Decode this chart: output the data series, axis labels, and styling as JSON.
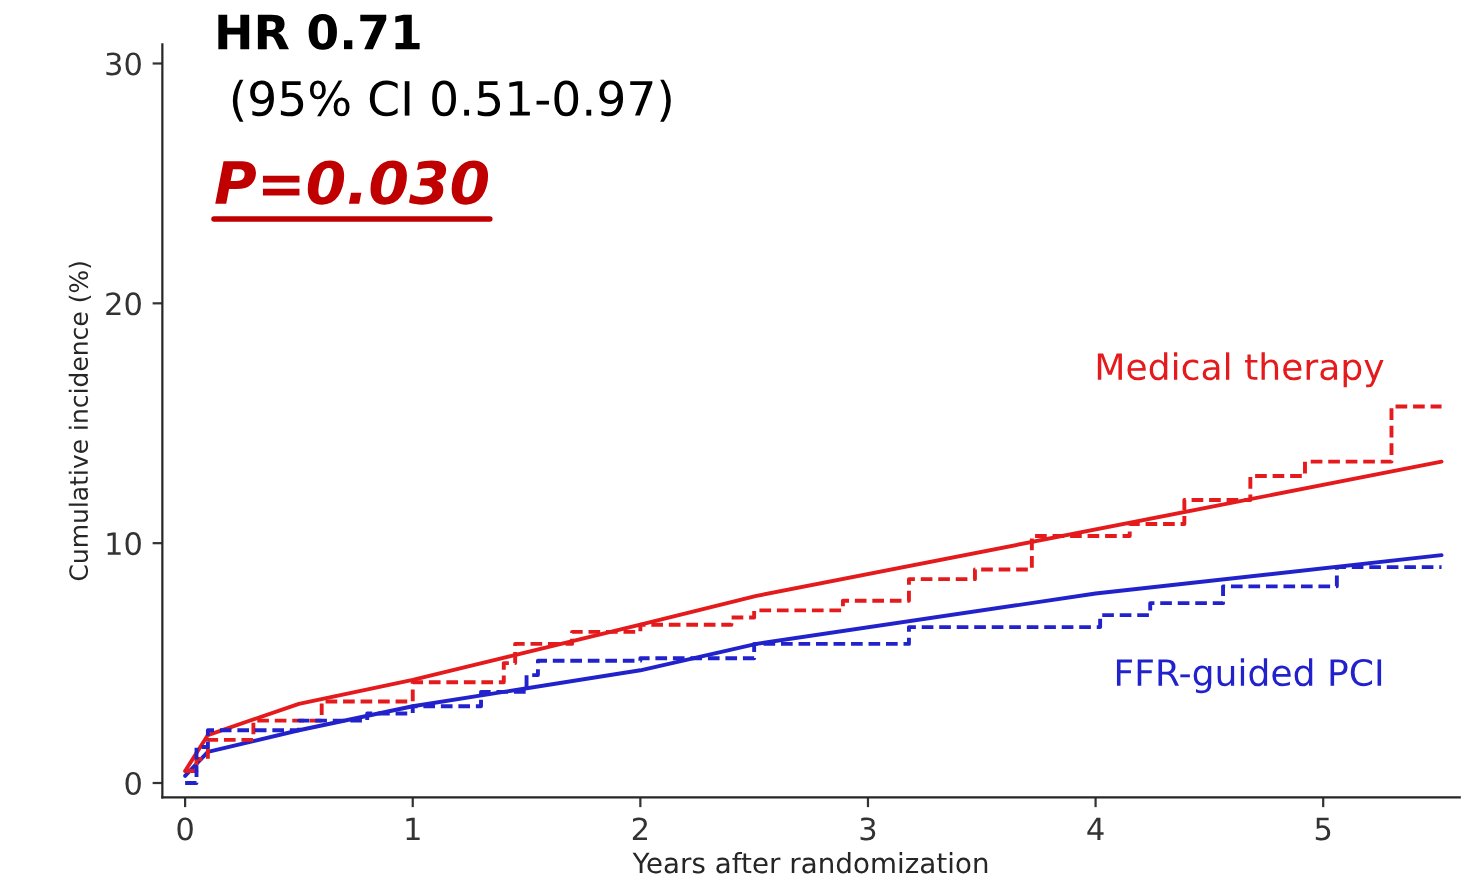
{
  "chart_data": {
    "type": "step",
    "xlabel": "Years after randomization",
    "ylabel": "Cumulative incidence (%)",
    "xlim": [
      -0.1,
      5.6
    ],
    "ylim": [
      -0.6,
      30.8
    ],
    "xticks": [
      0,
      1,
      2,
      3,
      4,
      5
    ],
    "yticks": [
      0,
      10,
      20,
      30
    ],
    "grid": false,
    "legend": false,
    "annotations": [
      "HR 0.71",
      "(95% CI 0.51-0.97)",
      "P=0.030"
    ],
    "series": [
      {
        "name": "Medical therapy",
        "color": "#e41a1c",
        "line_style": "dashed",
        "x": [
          0,
          0.05,
          0.1,
          0.3,
          0.6,
          1.0,
          1.4,
          1.45,
          1.7,
          2.0,
          2.4,
          2.5,
          2.89,
          3.18,
          3.47,
          3.72,
          4.15,
          4.39,
          4.68,
          4.92,
          5.3,
          5.52
        ],
        "values": [
          0.5,
          1.0,
          1.8,
          2.6,
          3.4,
          4.2,
          5.0,
          5.8,
          6.3,
          6.6,
          6.9,
          7.2,
          7.6,
          8.5,
          8.9,
          10.3,
          10.8,
          11.8,
          12.8,
          13.4,
          15.7,
          15.7
        ]
      },
      {
        "color": "#e41a1c",
        "type": "line",
        "line_style": "solid",
        "x": [
          0,
          0.1,
          0.5,
          1.0,
          2.0,
          2.51,
          5.52
        ],
        "values": [
          0.5,
          2.0,
          3.3,
          4.3,
          6.6,
          7.8,
          13.4
        ]
      },
      {
        "name": "FFR-guided PCI",
        "color": "#2222cc",
        "line_style": "dashed",
        "x": [
          0,
          0.05,
          0.1,
          0.5,
          0.8,
          1.0,
          1.3,
          1.5,
          1.55,
          2.0,
          2.5,
          3.18,
          4.02,
          4.24,
          4.56,
          5.06,
          5.52
        ],
        "values": [
          0,
          1.5,
          2.2,
          2.6,
          2.9,
          3.2,
          3.8,
          4.5,
          5.1,
          5.2,
          5.8,
          6.5,
          7.0,
          7.5,
          8.2,
          9.0,
          9.0
        ]
      },
      {
        "color": "#2222cc",
        "type": "line",
        "line_style": "solid",
        "x": [
          0,
          0.1,
          0.5,
          1.0,
          2.0,
          2.51,
          4.0,
          5.52
        ],
        "values": [
          0.3,
          1.3,
          2.2,
          3.2,
          4.7,
          5.8,
          7.9,
          9.5
        ]
      }
    ]
  }
}
